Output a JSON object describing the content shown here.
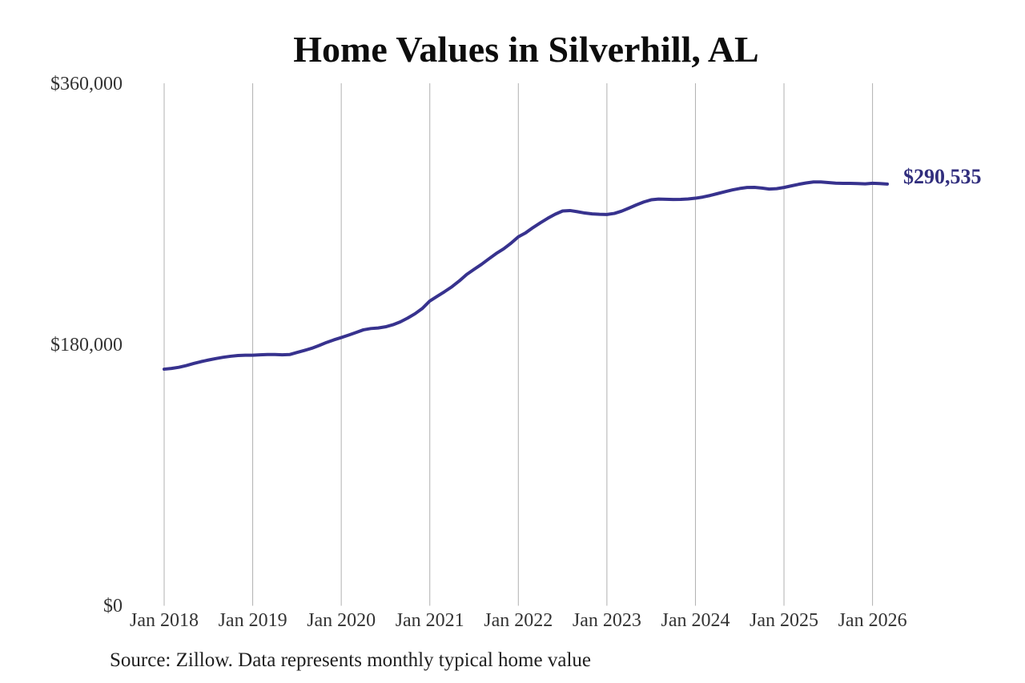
{
  "title": "Home Values in Silverhill, AL",
  "end_label": "$290,535",
  "source_note": "Source: Zillow. Data represents monthly typical home value",
  "colors": {
    "line": "#37328e",
    "end_label": "#312e7d",
    "grid": "#b0b0b0",
    "tick_text": "#333333",
    "title_text": "#0d0d0d",
    "source_text": "#1f1f1f",
    "background": "#ffffff"
  },
  "chart_data": {
    "type": "line",
    "title": "Home Values in Silverhill, AL",
    "xlabel": "",
    "ylabel": "",
    "ylim": [
      0,
      360000
    ],
    "grid": "vertical-only",
    "legend": "none",
    "y_ticks": [
      {
        "label": "$360,000",
        "value": 360000
      },
      {
        "label": "$180,000",
        "value": 180000
      },
      {
        "label": "$0",
        "value": 0
      }
    ],
    "x_ticks": [
      {
        "label": "Jan 2018",
        "month_index": 0
      },
      {
        "label": "Jan 2019",
        "month_index": 12
      },
      {
        "label": "Jan 2020",
        "month_index": 24
      },
      {
        "label": "Jan 2021",
        "month_index": 36
      },
      {
        "label": "Jan 2022",
        "month_index": 48
      },
      {
        "label": "Jan 2023",
        "month_index": 60
      },
      {
        "label": "Jan 2024",
        "month_index": 72
      },
      {
        "label": "Jan 2025",
        "month_index": 84
      },
      {
        "label": "Jan 2026",
        "month_index": 96
      }
    ],
    "series": [
      {
        "name": "Typical home value",
        "start": "2018-01",
        "frequency": "monthly",
        "values": [
          163000,
          163500,
          164300,
          165500,
          166900,
          168200,
          169300,
          170300,
          171200,
          171900,
          172400,
          172600,
          172600,
          172900,
          173100,
          173100,
          172900,
          173100,
          174500,
          175900,
          177400,
          179300,
          181400,
          183200,
          184800,
          186500,
          188300,
          190100,
          191000,
          191400,
          192200,
          193600,
          195600,
          198200,
          201200,
          204900,
          210000,
          213200,
          216400,
          219800,
          223800,
          228300,
          231800,
          235200,
          239000,
          242700,
          245900,
          249800,
          254200,
          257000,
          260600,
          263900,
          267000,
          269800,
          272000,
          272300,
          271500,
          270600,
          270000,
          269700,
          269600,
          270300,
          271900,
          274000,
          276200,
          278200,
          279700,
          280200,
          280100,
          279900,
          280000,
          280300,
          280800,
          281600,
          282700,
          284000,
          285300,
          286500,
          287500,
          288200,
          288300,
          287800,
          287100,
          287400,
          288200,
          289300,
          290400,
          291300,
          292000,
          292000,
          291600,
          291200,
          291000,
          291000,
          290900,
          290700,
          291100,
          290900,
          290535
        ]
      }
    ],
    "end_value": 290535
  }
}
